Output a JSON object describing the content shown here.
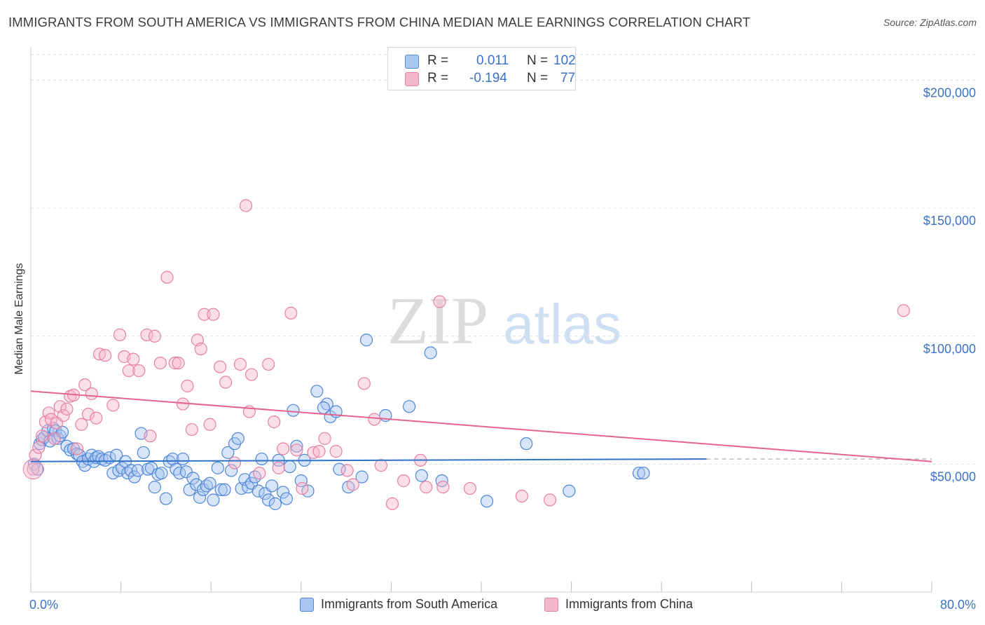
{
  "title": "IMMIGRANTS FROM SOUTH AMERICA VS IMMIGRANTS FROM CHINA MEDIAN MALE EARNINGS CORRELATION CHART",
  "source": "Source: ZipAtlas.com",
  "watermark": {
    "zip": "ZIP",
    "atlas": "atlas"
  },
  "colors": {
    "blue_fill": "#a9c6ef",
    "blue_stroke": "#4f86d8",
    "blue_line": "#2f72cc",
    "pink_fill": "#f3b8cc",
    "pink_stroke": "#e87fa2",
    "pink_line": "#e2638f",
    "axis_text": "#3b72c4",
    "grid": "#dddddd"
  },
  "legend_stats": [
    {
      "r_label": "R =",
      "r_value": "0.011",
      "n_label": "N =",
      "n_value": "102",
      "series": "blue"
    },
    {
      "r_label": "R =",
      "r_value": "-0.194",
      "n_label": "N =",
      "n_value": "77",
      "series": "pink"
    }
  ],
  "chart_data": {
    "type": "scatter",
    "title": "IMMIGRANTS FROM SOUTH AMERICA VS IMMIGRANTS FROM CHINA MEDIAN MALE EARNINGS CORRELATION CHART",
    "xlabel": "",
    "ylabel": "Median Male Earnings",
    "xlim": [
      0,
      80
    ],
    "ylim": [
      0,
      210000
    ],
    "x_tick_labels": {
      "min": "0.0%",
      "max": "80.0%"
    },
    "y_ticks": [
      {
        "value": 50000,
        "label": "$50,000"
      },
      {
        "value": 100000,
        "label": "$100,000"
      },
      {
        "value": 150000,
        "label": "$150,000"
      },
      {
        "value": 200000,
        "label": "$200,000"
      }
    ],
    "grid": "horizontal dashed",
    "legend": "bottom-center",
    "series": [
      {
        "name": "Immigrants from South America",
        "color": "blue",
        "trend": {
          "x": [
            0,
            60
          ],
          "y": [
            51000,
            52000
          ],
          "dashed_to_x": 80
        },
        "points": [
          [
            0.3,
            50000
          ],
          [
            0.6,
            48000
          ],
          [
            0.8,
            58000
          ],
          [
            1.0,
            59500
          ],
          [
            1.2,
            60500
          ],
          [
            1.5,
            63000
          ],
          [
            1.7,
            59000
          ],
          [
            2.0,
            64000
          ],
          [
            2.2,
            63000
          ],
          [
            2.4,
            60000
          ],
          [
            2.6,
            61000
          ],
          [
            2.8,
            62500
          ],
          [
            3.2,
            57000
          ],
          [
            3.5,
            55500
          ],
          [
            3.8,
            56000
          ],
          [
            4.1,
            54000
          ],
          [
            4.3,
            53500
          ],
          [
            4.6,
            51000
          ],
          [
            4.8,
            49500
          ],
          [
            5.1,
            52000
          ],
          [
            5.4,
            53500
          ],
          [
            5.6,
            51000
          ],
          [
            5.8,
            52500
          ],
          [
            6.0,
            53000
          ],
          [
            6.3,
            52000
          ],
          [
            6.6,
            51500
          ],
          [
            7.0,
            52500
          ],
          [
            7.3,
            46500
          ],
          [
            7.6,
            53500
          ],
          [
            7.8,
            47500
          ],
          [
            8.1,
            48500
          ],
          [
            8.4,
            51000
          ],
          [
            8.6,
            46500
          ],
          [
            8.9,
            47500
          ],
          [
            9.2,
            45000
          ],
          [
            9.5,
            47500
          ],
          [
            9.8,
            62000
          ],
          [
            10.0,
            54500
          ],
          [
            10.4,
            48000
          ],
          [
            10.7,
            48500
          ],
          [
            11.0,
            41000
          ],
          [
            11.3,
            46000
          ],
          [
            11.6,
            46500
          ],
          [
            12.0,
            36500
          ],
          [
            12.3,
            51000
          ],
          [
            12.6,
            52000
          ],
          [
            12.9,
            48000
          ],
          [
            13.2,
            46500
          ],
          [
            13.5,
            52000
          ],
          [
            13.8,
            47000
          ],
          [
            14.1,
            40000
          ],
          [
            14.4,
            44500
          ],
          [
            14.7,
            42000
          ],
          [
            15.0,
            37000
          ],
          [
            15.3,
            40000
          ],
          [
            15.6,
            41500
          ],
          [
            15.9,
            42500
          ],
          [
            16.2,
            36000
          ],
          [
            16.6,
            48500
          ],
          [
            16.9,
            40000
          ],
          [
            17.2,
            40000
          ],
          [
            17.5,
            54500
          ],
          [
            17.8,
            47500
          ],
          [
            18.1,
            58000
          ],
          [
            18.4,
            60000
          ],
          [
            18.7,
            40500
          ],
          [
            19.0,
            44000
          ],
          [
            19.3,
            41000
          ],
          [
            19.6,
            42500
          ],
          [
            19.9,
            45000
          ],
          [
            20.2,
            39500
          ],
          [
            20.5,
            52000
          ],
          [
            20.8,
            38500
          ],
          [
            21.1,
            36000
          ],
          [
            21.4,
            41500
          ],
          [
            21.7,
            34500
          ],
          [
            22.0,
            51500
          ],
          [
            22.4,
            39000
          ],
          [
            22.7,
            36500
          ],
          [
            23.0,
            49000
          ],
          [
            23.3,
            71000
          ],
          [
            23.6,
            57000
          ],
          [
            24.0,
            43500
          ],
          [
            24.3,
            51500
          ],
          [
            24.6,
            39500
          ],
          [
            25.4,
            78500
          ],
          [
            26.3,
            73500
          ],
          [
            26.0,
            72000
          ],
          [
            26.6,
            68500
          ],
          [
            27.1,
            70500
          ],
          [
            27.4,
            48000
          ],
          [
            28.2,
            41000
          ],
          [
            29.4,
            45000
          ],
          [
            29.8,
            98500
          ],
          [
            31.5,
            69000
          ],
          [
            33.6,
            72500
          ],
          [
            34.7,
            45500
          ],
          [
            35.5,
            93500
          ],
          [
            36.5,
            43500
          ],
          [
            40.5,
            35500
          ],
          [
            44.0,
            58000
          ],
          [
            47.8,
            39500
          ],
          [
            54.0,
            46500
          ],
          [
            54.4,
            46500
          ]
        ]
      },
      {
        "name": "Immigrants from China",
        "color": "pink",
        "trend": {
          "x": [
            0,
            80
          ],
          "y": [
            78500,
            51000
          ]
        },
        "points": [
          [
            0.2,
            48000
          ],
          [
            0.4,
            53500
          ],
          [
            0.7,
            56500
          ],
          [
            1.0,
            61000
          ],
          [
            1.3,
            66500
          ],
          [
            1.6,
            70000
          ],
          [
            1.8,
            67500
          ],
          [
            2.1,
            60000
          ],
          [
            2.3,
            66000
          ],
          [
            2.6,
            72500
          ],
          [
            2.9,
            69000
          ],
          [
            3.2,
            71500
          ],
          [
            3.5,
            76500
          ],
          [
            3.8,
            77000
          ],
          [
            4.1,
            56000
          ],
          [
            4.5,
            65500
          ],
          [
            4.8,
            81000
          ],
          [
            5.1,
            69500
          ],
          [
            5.4,
            77500
          ],
          [
            5.8,
            68000
          ],
          [
            6.1,
            93000
          ],
          [
            6.6,
            92500
          ],
          [
            7.3,
            73000
          ],
          [
            7.9,
            100500
          ],
          [
            8.3,
            92000
          ],
          [
            8.7,
            86500
          ],
          [
            9.1,
            91000
          ],
          [
            9.6,
            86500
          ],
          [
            10.3,
            100500
          ],
          [
            10.6,
            61000
          ],
          [
            11.0,
            100000
          ],
          [
            11.5,
            89500
          ],
          [
            12.1,
            123000
          ],
          [
            12.8,
            89500
          ],
          [
            13.1,
            89500
          ],
          [
            13.5,
            73500
          ],
          [
            13.9,
            80500
          ],
          [
            14.3,
            63500
          ],
          [
            14.8,
            98500
          ],
          [
            15.1,
            95000
          ],
          [
            15.4,
            108500
          ],
          [
            15.9,
            65500
          ],
          [
            16.2,
            108500
          ],
          [
            16.8,
            88000
          ],
          [
            17.3,
            82000
          ],
          [
            18.1,
            50500
          ],
          [
            18.6,
            89000
          ],
          [
            19.1,
            151000
          ],
          [
            19.4,
            70500
          ],
          [
            19.6,
            85000
          ],
          [
            20.3,
            46500
          ],
          [
            21.1,
            89000
          ],
          [
            21.6,
            66500
          ],
          [
            22.0,
            48500
          ],
          [
            22.4,
            56000
          ],
          [
            23.1,
            109000
          ],
          [
            23.6,
            55500
          ],
          [
            24.1,
            40500
          ],
          [
            25.1,
            54500
          ],
          [
            25.6,
            55000
          ],
          [
            26.1,
            60000
          ],
          [
            27.1,
            55000
          ],
          [
            28.1,
            47500
          ],
          [
            28.6,
            42000
          ],
          [
            29.6,
            81500
          ],
          [
            30.5,
            67500
          ],
          [
            31.1,
            49500
          ],
          [
            32.1,
            34500
          ],
          [
            33.1,
            43500
          ],
          [
            34.6,
            51500
          ],
          [
            35.1,
            41000
          ],
          [
            36.3,
            113500
          ],
          [
            36.6,
            41000
          ],
          [
            39.0,
            40500
          ],
          [
            43.6,
            37500
          ],
          [
            46.1,
            36000
          ],
          [
            77.5,
            110000
          ]
        ]
      }
    ]
  },
  "axis_labels": {
    "y": "Median Male Earnings"
  }
}
